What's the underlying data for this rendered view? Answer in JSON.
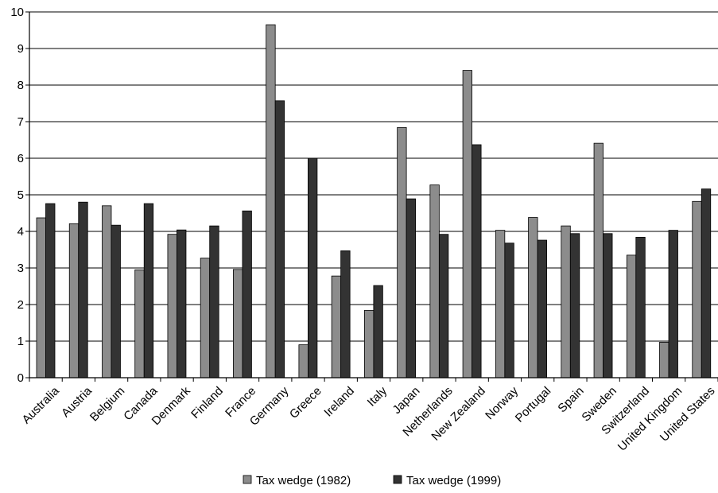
{
  "chart_data": {
    "type": "bar",
    "categories": [
      "Australia",
      "Austria",
      "Belgium",
      "Canada",
      "Denmark",
      "Finland",
      "France",
      "Germany",
      "Greece",
      "Ireland",
      "Italy",
      "Japan",
      "Netherlands",
      "New Zealand",
      "Norway",
      "Portugal",
      "Spain",
      "Sweden",
      "Switzerland",
      "United Kingdom",
      "United States"
    ],
    "series": [
      {
        "name": "Tax wedge (1982)",
        "color": "#8c8c8c",
        "values": [
          4.37,
          4.21,
          4.7,
          2.95,
          3.92,
          3.27,
          2.96,
          9.65,
          0.9,
          2.78,
          1.84,
          6.84,
          5.27,
          8.4,
          4.03,
          4.38,
          4.15,
          6.41,
          3.35,
          0.97,
          4.82
        ]
      },
      {
        "name": "Tax wedge (1999)",
        "color": "#333333",
        "values": [
          4.76,
          4.8,
          4.17,
          4.76,
          4.04,
          4.15,
          4.56,
          7.57,
          6.0,
          3.47,
          2.52,
          4.89,
          3.92,
          6.37,
          3.68,
          3.76,
          3.94,
          3.94,
          3.84,
          4.03,
          5.16
        ]
      }
    ],
    "title": "",
    "xlabel": "",
    "ylabel": "",
    "ylim": [
      0,
      10
    ],
    "yticks": [
      0,
      1,
      2,
      3,
      4,
      5,
      6,
      7,
      8,
      9,
      10
    ],
    "grid": true,
    "legend_position": "bottom-center"
  }
}
